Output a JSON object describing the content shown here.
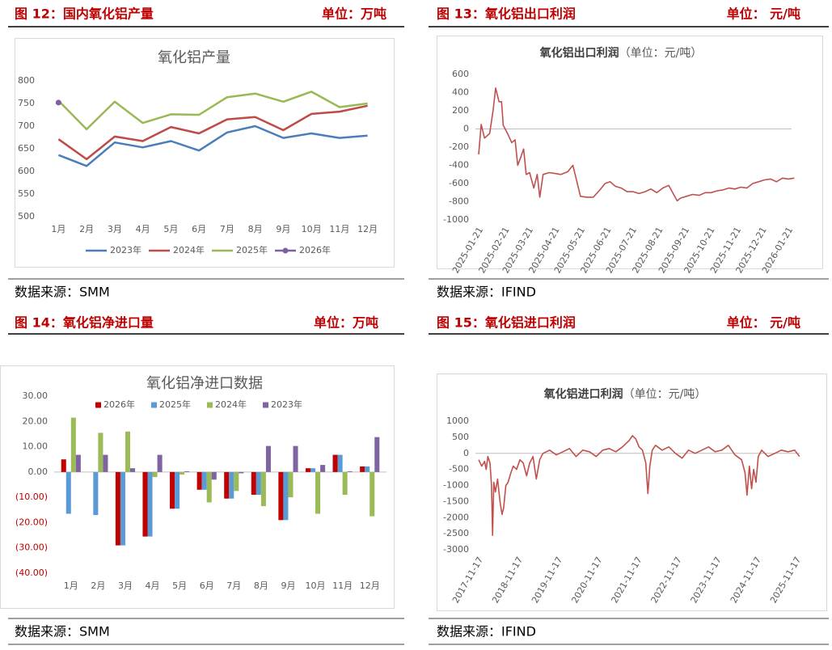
{
  "panels": [
    {
      "figure": "图 12：国内氧化铝产量",
      "unit": "单位：万吨",
      "source": "数据来源：SMM"
    },
    {
      "figure": "图 13：氧化铝出口利润",
      "unit": "单位： 元/吨",
      "source": "数据来源：IFIND"
    },
    {
      "figure": "图 14：氧化铝净进口量",
      "unit": "单位：万吨",
      "source": "数据来源：SMM"
    },
    {
      "figure": "图 15：氧化铝进口利润",
      "unit": "单位： 元/吨",
      "source": "数据来源：IFIND"
    }
  ],
  "chart_data": [
    {
      "type": "line",
      "title": "氧化铝产量",
      "categories": [
        "1月",
        "2月",
        "3月",
        "4月",
        "5月",
        "6月",
        "7月",
        "8月",
        "9月",
        "10月",
        "11月",
        "12月"
      ],
      "series": [
        {
          "name": "2023年",
          "color": "#4a7ebb",
          "values": [
            636,
            612,
            664,
            653,
            667,
            646,
            686,
            700,
            674,
            684,
            674,
            679
          ]
        },
        {
          "name": "2024年",
          "color": "#be4b48",
          "values": [
            671,
            627,
            677,
            667,
            698,
            684,
            715,
            720,
            691,
            727,
            732,
            745
          ]
        },
        {
          "name": "2025年",
          "color": "#98b954",
          "values": [
            756,
            693,
            754,
            707,
            726,
            725,
            764,
            772,
            754,
            776,
            742,
            750
          ]
        },
        {
          "name": "2026年",
          "color": "#7d60a0",
          "marker": true,
          "values": [
            752,
            null,
            null,
            null,
            null,
            null,
            null,
            null,
            null,
            null,
            null,
            null
          ]
        }
      ],
      "ylim": [
        500,
        800
      ],
      "yticks": [
        500,
        550,
        600,
        650,
        700,
        750,
        800
      ],
      "grid": false,
      "legend": "bottom"
    },
    {
      "type": "line",
      "title": "氧化铝出口利润",
      "subtitle": "（单位：元/吨）",
      "x": [
        "2025-01-21",
        "2025-01-24",
        "2025-01-28",
        "2025-02-03",
        "2025-02-07",
        "2025-02-10",
        "2025-02-14",
        "2025-02-17",
        "2025-02-19",
        "2025-02-24",
        "2025-03-01",
        "2025-03-05",
        "2025-03-08",
        "2025-03-12",
        "2025-03-15",
        "2025-03-18",
        "2025-03-22",
        "2025-03-27",
        "2025-03-31",
        "2025-04-03",
        "2025-04-07",
        "2025-04-14",
        "2025-04-21",
        "2025-04-28",
        "2025-05-06",
        "2025-05-12",
        "2025-05-16",
        "2025-05-21",
        "2025-05-28",
        "2025-06-05",
        "2025-06-12",
        "2025-06-19",
        "2025-06-25",
        "2025-07-01",
        "2025-07-08",
        "2025-07-15",
        "2025-07-22",
        "2025-07-29",
        "2025-08-05",
        "2025-08-12",
        "2025-08-19",
        "2025-08-26",
        "2025-09-02",
        "2025-09-09",
        "2025-09-12",
        "2025-09-16",
        "2025-09-23",
        "2025-09-30",
        "2025-10-08",
        "2025-10-15",
        "2025-10-22",
        "2025-10-29",
        "2025-11-05",
        "2025-11-12",
        "2025-11-19",
        "2025-11-26",
        "2025-12-03",
        "2025-12-10",
        "2025-12-17",
        "2025-12-24",
        "2025-12-31",
        "2026-01-07",
        "2026-01-14",
        "2026-01-21",
        "2026-01-28"
      ],
      "series": [
        {
          "name": "出口利润",
          "color": "#c0504d",
          "values": [
            -280,
            50,
            -100,
            -50,
            200,
            450,
            300,
            300,
            40,
            -50,
            -150,
            -120,
            -400,
            -300,
            -220,
            -500,
            -480,
            -650,
            -500,
            -750,
            -500,
            -480,
            -490,
            -500,
            -470,
            -400,
            -550,
            -740,
            -750,
            -750,
            -680,
            -600,
            -580,
            -630,
            -650,
            -690,
            -690,
            -710,
            -690,
            -660,
            -700,
            -650,
            -620,
            -740,
            -790,
            -760,
            -740,
            -720,
            -730,
            -700,
            -700,
            -680,
            -670,
            -650,
            -660,
            -640,
            -650,
            -600,
            -580,
            -560,
            -550,
            -580,
            -540,
            -550,
            -540
          ]
        }
      ],
      "xlim": [
        "2025-01-21",
        "2026-01-21"
      ],
      "xticks": [
        "2025-01-21",
        "2025-02-21",
        "2025-03-21",
        "2025-04-21",
        "2025-05-21",
        "2025-06-21",
        "2025-07-21",
        "2025-08-21",
        "2025-09-21",
        "2025-10-21",
        "2025-11-21",
        "2025-12-21",
        "2026-01-21"
      ],
      "ylim": [
        -1000,
        600
      ],
      "yticks": [
        600,
        400,
        200,
        0,
        -200,
        -400,
        -600,
        -800,
        -1000
      ],
      "grid": false
    },
    {
      "type": "bar",
      "title": "氧化铝净进口数据",
      "categories": [
        "1月",
        "2月",
        "3月",
        "4月",
        "5月",
        "6月",
        "7月",
        "8月",
        "9月",
        "10月",
        "11月",
        "12月"
      ],
      "series": [
        {
          "name": "2026年",
          "color": "#c00000",
          "values": [
            5.0,
            null,
            -29,
            -25.5,
            -14.5,
            -7,
            -10.5,
            -9,
            -19,
            1.5,
            6.8,
            2.2
          ]
        },
        {
          "name": "2025年",
          "color": "#5b9bd5",
          "values": [
            -16.5,
            -17,
            -29,
            -25.5,
            -14.5,
            -7,
            -10.5,
            -9,
            -19,
            1.5,
            6.8,
            2.2
          ]
        },
        {
          "name": "2024年",
          "color": "#9bbb59",
          "values": [
            21.5,
            15.5,
            16,
            -2,
            -1,
            -12,
            -7.5,
            -13.5,
            -10,
            -16.5,
            -9,
            -17.5
          ]
        },
        {
          "name": "2023年",
          "color": "#8064a2",
          "values": [
            6.8,
            6.8,
            1.5,
            6.8,
            0.3,
            -3,
            -0.5,
            10.3,
            10.3,
            2.8,
            0.3,
            13.8
          ]
        }
      ],
      "ylim": [
        -40,
        30
      ],
      "yticks": [
        {
          "value": 30,
          "label": "30.00"
        },
        {
          "value": 20,
          "label": "20.00"
        },
        {
          "value": 10,
          "label": "10.00"
        },
        {
          "value": 0,
          "label": "0.00"
        },
        {
          "value": -10,
          "label": "(10.00)"
        },
        {
          "value": -20,
          "label": "(20.00)"
        },
        {
          "value": -30,
          "label": "(30.00)"
        },
        {
          "value": -40,
          "label": "(40.00)"
        }
      ],
      "negative_tick_color": "#c00000",
      "grid": false,
      "legend": "top"
    },
    {
      "type": "line",
      "title": "氧化铝进口利润",
      "subtitle": "（单位：元/吨）",
      "x": [
        "2017-11-17",
        "2017-12-15",
        "2018-01-10",
        "2018-01-25",
        "2018-02-10",
        "2018-03-01",
        "2018-03-15",
        "2018-03-25",
        "2018-04-05",
        "2018-04-20",
        "2018-05-10",
        "2018-06-01",
        "2018-06-20",
        "2018-07-05",
        "2018-07-25",
        "2018-08-15",
        "2018-09-10",
        "2018-10-01",
        "2018-11-01",
        "2018-12-01",
        "2019-01-01",
        "2019-02-01",
        "2019-03-01",
        "2019-04-01",
        "2019-05-01",
        "2019-06-01",
        "2019-07-01",
        "2019-09-01",
        "2019-11-01",
        "2020-01-01",
        "2020-03-01",
        "2020-05-01",
        "2020-07-01",
        "2020-09-01",
        "2020-11-01",
        "2021-01-01",
        "2021-03-01",
        "2021-05-01",
        "2021-07-01",
        "2021-09-01",
        "2021-10-01",
        "2021-11-01",
        "2021-12-01",
        "2022-01-01",
        "2022-02-01",
        "2022-02-20",
        "2022-03-10",
        "2022-04-01",
        "2022-05-01",
        "2022-07-01",
        "2022-09-01",
        "2022-11-01",
        "2023-01-01",
        "2023-03-01",
        "2023-05-01",
        "2023-07-01",
        "2023-09-01",
        "2023-11-01",
        "2024-01-01",
        "2024-03-01",
        "2024-05-01",
        "2024-07-01",
        "2024-08-01",
        "2024-08-20",
        "2024-09-10",
        "2024-10-01",
        "2024-10-20",
        "2024-11-10",
        "2024-12-01",
        "2025-01-01",
        "2025-03-01",
        "2025-05-01",
        "2025-07-01",
        "2025-09-01",
        "2025-11-01",
        "2025-12-15"
      ],
      "series": [
        {
          "name": "进口利润",
          "color": "#c0504d",
          "values": [
            -200,
            -400,
            -250,
            -500,
            -100,
            -300,
            -1000,
            -2550,
            -900,
            -1200,
            -800,
            -1500,
            -1900,
            -1700,
            -1000,
            -900,
            -600,
            -400,
            -500,
            -200,
            -300,
            -700,
            -300,
            -100,
            -800,
            -200,
            0,
            100,
            -50,
            50,
            150,
            -100,
            100,
            50,
            -100,
            100,
            150,
            50,
            200,
            400,
            550,
            450,
            200,
            100,
            -300,
            -1250,
            -400,
            100,
            250,
            100,
            200,
            0,
            -150,
            100,
            0,
            100,
            200,
            50,
            100,
            250,
            -50,
            -200,
            -600,
            -1300,
            -400,
            -1100,
            -500,
            -900,
            -100,
            100,
            -100,
            0,
            100,
            50,
            100,
            -100
          ]
        }
      ],
      "xlim": [
        "2017-11-17",
        "2025-11-17"
      ],
      "xticks": [
        "2017-11-17",
        "2018-11-17",
        "2019-11-17",
        "2020-11-17",
        "2021-11-17",
        "2022-11-17",
        "2023-11-17",
        "2024-11-17",
        "2025-11-17"
      ],
      "ylim": [
        -3000,
        1000
      ],
      "yticks": [
        1000,
        500,
        0,
        -500,
        -1000,
        -1500,
        -2000,
        -2500,
        -3000
      ],
      "grid": false
    }
  ]
}
